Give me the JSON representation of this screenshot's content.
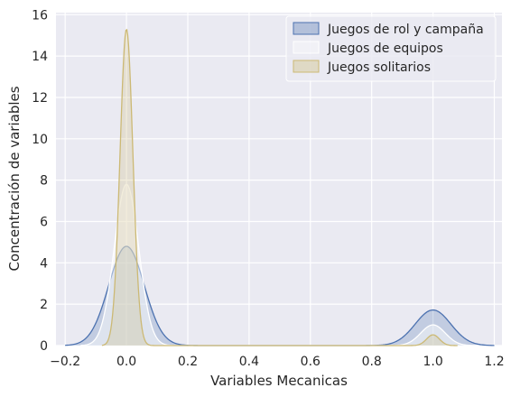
{
  "chart_data": {
    "type": "area",
    "xlabel": "Variables Mecanicas",
    "ylabel": "Concentración de variables",
    "xlim": [
      -0.23,
      1.225
    ],
    "ylim": [
      0,
      16.1
    ],
    "grid": true,
    "legend_position": "top-right",
    "x_ticks": [
      -0.2,
      0.0,
      0.2,
      0.4,
      0.6,
      0.8,
      1.0,
      1.2
    ],
    "x_tick_labels": [
      "−0.2",
      "0.0",
      "0.2",
      "0.4",
      "0.6",
      "0.8",
      "1.0",
      "1.2"
    ],
    "y_ticks": [
      0,
      2,
      4,
      6,
      8,
      10,
      12,
      14,
      16
    ],
    "y_tick_labels": [
      "0",
      "2",
      "4",
      "6",
      "8",
      "10",
      "12",
      "14",
      "16"
    ],
    "series": [
      {
        "name": "Juegos de rol  y campaña",
        "color": "#4c72b0",
        "fill_opacity": 0.25,
        "range": [
          -0.2,
          1.2
        ],
        "peaks": [
          {
            "center": 0.0,
            "height": 4.8,
            "sigma": 0.058
          },
          {
            "center": 1.0,
            "height": 1.72,
            "sigma": 0.058
          }
        ]
      },
      {
        "name": "Juegos de equipos",
        "color": "#ffffff",
        "fill_opacity": 0.45,
        "range": [
          -0.15,
          1.15
        ],
        "peaks": [
          {
            "center": 0.0,
            "height": 7.8,
            "sigma": 0.04
          },
          {
            "center": 1.0,
            "height": 1.0,
            "sigma": 0.04
          }
        ]
      },
      {
        "name": "Juegos solitarios",
        "color": "#ccb974",
        "fill_opacity": 0.25,
        "range": [
          -0.08,
          1.08
        ],
        "peaks": [
          {
            "center": 0.0,
            "height": 15.3,
            "sigma": 0.021
          },
          {
            "center": 1.0,
            "height": 0.52,
            "sigma": 0.021
          }
        ]
      }
    ]
  },
  "colors": {
    "axes_background": "#eaeaf2",
    "grid": "#ffffff"
  }
}
